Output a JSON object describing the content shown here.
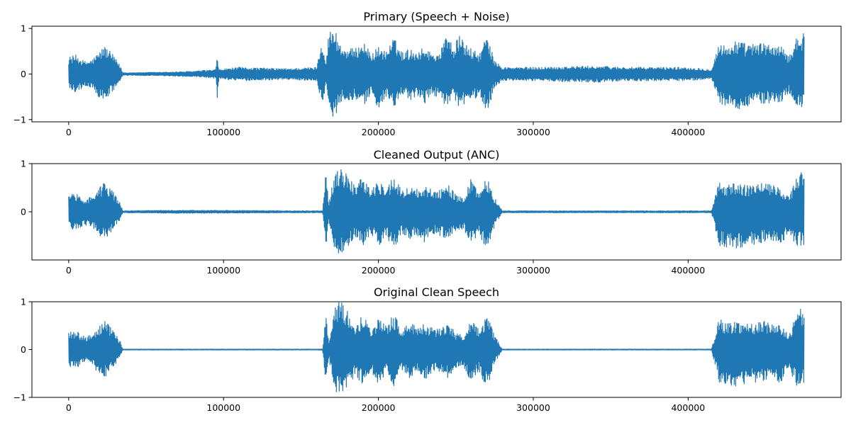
{
  "figure": {
    "charts": [
      {
        "type": "line",
        "title": "Primary (Speech + Noise)",
        "xlim": [
          -23750,
          498750
        ],
        "ylim": [
          -1.05,
          1.05
        ],
        "xticks": [
          0,
          100000,
          200000,
          300000,
          400000
        ],
        "xtick_labels": [
          "0",
          "100000",
          "200000",
          "300000",
          "400000"
        ],
        "yticks": [
          -1,
          0,
          1
        ],
        "ytick_labels": [
          "−1",
          "0",
          "1"
        ],
        "grid": false,
        "series_color": "#1f77b4",
        "envelope": {
          "x": [
            0,
            5000,
            10000,
            15000,
            20000,
            23000,
            28000,
            33000,
            35000,
            60000,
            80000,
            95000,
            96000,
            97000,
            110000,
            140000,
            160000,
            164000,
            166000,
            168000,
            172000,
            176000,
            185000,
            190000,
            195000,
            200000,
            205000,
            210000,
            215000,
            220000,
            225000,
            230000,
            235000,
            240000,
            245000,
            248000,
            252000,
            258000,
            265000,
            270000,
            275000,
            280000,
            300000,
            340000,
            360000,
            400000,
            415000,
            420000,
            425000,
            430000,
            440000,
            450000,
            460000,
            465000,
            470000,
            475000
          ],
          "upper": [
            0.38,
            0.42,
            0.28,
            0.32,
            0.5,
            0.63,
            0.45,
            0.2,
            0.03,
            0.04,
            0.06,
            0.1,
            0.4,
            0.1,
            0.15,
            0.12,
            0.15,
            0.85,
            0.2,
            0.95,
            1.0,
            0.6,
            0.55,
            0.75,
            0.45,
            0.6,
            0.5,
            0.8,
            0.5,
            0.55,
            0.5,
            0.6,
            0.45,
            0.5,
            1.0,
            0.55,
            0.85,
            0.6,
            0.45,
            0.85,
            0.3,
            0.15,
            0.15,
            0.18,
            0.15,
            0.15,
            0.1,
            0.7,
            0.6,
            0.75,
            0.65,
            0.7,
            0.6,
            0.4,
            0.85,
            0.9
          ],
          "lower": [
            -0.35,
            -0.4,
            -0.28,
            -0.3,
            -0.55,
            -0.6,
            -0.4,
            -0.18,
            -0.03,
            -0.04,
            -0.06,
            -0.1,
            -0.72,
            -0.1,
            -0.15,
            -0.12,
            -0.15,
            -0.7,
            -0.2,
            -0.9,
            -0.95,
            -0.6,
            -0.55,
            -0.75,
            -0.45,
            -0.75,
            -0.5,
            -0.8,
            -0.45,
            -0.6,
            -0.5,
            -0.65,
            -0.45,
            -0.55,
            -0.75,
            -0.55,
            -0.78,
            -0.6,
            -0.5,
            -0.88,
            -0.3,
            -0.15,
            -0.15,
            -0.18,
            -0.15,
            -0.15,
            -0.1,
            -0.65,
            -0.7,
            -0.8,
            -0.7,
            -0.65,
            -0.65,
            -0.4,
            -0.75,
            -0.72
          ]
        }
      },
      {
        "type": "line",
        "title": "Cleaned Output (ANC)",
        "xlim": [
          -23750,
          498750
        ],
        "ylim": [
          -1.0,
          1.0
        ],
        "xticks": [
          0,
          100000,
          200000,
          300000,
          400000
        ],
        "xtick_labels": [
          "0",
          "100000",
          "200000",
          "300000",
          "400000"
        ],
        "yticks": [
          0,
          1
        ],
        "ytick_labels": [
          "0",
          "1"
        ],
        "grid": false,
        "series_color": "#1f77b4",
        "envelope": {
          "x": [
            0,
            5000,
            10000,
            15000,
            20000,
            23000,
            28000,
            33000,
            35000,
            60000,
            100000,
            150000,
            164000,
            166000,
            168000,
            172000,
            176000,
            185000,
            190000,
            195000,
            200000,
            205000,
            210000,
            215000,
            220000,
            225000,
            230000,
            235000,
            240000,
            245000,
            250000,
            255000,
            260000,
            265000,
            270000,
            275000,
            280000,
            300000,
            340000,
            380000,
            415000,
            420000,
            425000,
            430000,
            440000,
            450000,
            460000,
            465000,
            470000,
            475000
          ],
          "upper": [
            0.38,
            0.4,
            0.28,
            0.32,
            0.5,
            0.62,
            0.45,
            0.2,
            0.02,
            0.03,
            0.03,
            0.02,
            0.02,
            0.9,
            0.2,
            0.9,
            0.95,
            0.55,
            0.75,
            0.45,
            0.65,
            0.5,
            0.75,
            0.45,
            0.55,
            0.5,
            0.55,
            0.45,
            0.45,
            0.6,
            0.35,
            0.3,
            0.7,
            0.4,
            0.75,
            0.3,
            0.02,
            0.02,
            0.02,
            0.02,
            0.02,
            0.65,
            0.55,
            0.6,
            0.55,
            0.6,
            0.5,
            0.3,
            0.75,
            0.9
          ],
          "lower": [
            -0.35,
            -0.4,
            -0.28,
            -0.3,
            -0.55,
            -0.6,
            -0.4,
            -0.18,
            -0.02,
            -0.03,
            -0.03,
            -0.02,
            -0.02,
            -0.8,
            -0.2,
            -0.85,
            -0.9,
            -0.55,
            -0.75,
            -0.45,
            -0.75,
            -0.5,
            -0.8,
            -0.45,
            -0.6,
            -0.5,
            -0.65,
            -0.45,
            -0.5,
            -0.6,
            -0.4,
            -0.35,
            -0.7,
            -0.45,
            -0.85,
            -0.3,
            -0.02,
            -0.02,
            -0.02,
            -0.02,
            -0.02,
            -0.7,
            -0.75,
            -0.8,
            -0.7,
            -0.65,
            -0.7,
            -0.4,
            -0.75,
            -0.72
          ]
        }
      },
      {
        "type": "line",
        "title": "Original Clean Speech",
        "xlim": [
          -23750,
          498750
        ],
        "ylim": [
          -1.0,
          1.0
        ],
        "xticks": [
          0,
          100000,
          200000,
          300000,
          400000
        ],
        "xtick_labels": [
          "0",
          "100000",
          "200000",
          "300000",
          "400000"
        ],
        "yticks": [
          -1,
          0,
          1
        ],
        "ytick_labels": [
          "−1",
          "0",
          "1"
        ],
        "grid": false,
        "series_color": "#1f77b4",
        "envelope": {
          "x": [
            0,
            5000,
            10000,
            15000,
            20000,
            23000,
            28000,
            33000,
            35000,
            60000,
            100000,
            150000,
            164000,
            166000,
            168000,
            172000,
            176000,
            185000,
            190000,
            195000,
            200000,
            205000,
            210000,
            215000,
            220000,
            225000,
            230000,
            235000,
            240000,
            245000,
            250000,
            255000,
            260000,
            265000,
            270000,
            275000,
            280000,
            300000,
            340000,
            380000,
            415000,
            420000,
            425000,
            430000,
            440000,
            450000,
            460000,
            465000,
            470000,
            475000
          ],
          "upper": [
            0.38,
            0.4,
            0.28,
            0.32,
            0.5,
            0.63,
            0.45,
            0.2,
            0.01,
            0.01,
            0.01,
            0.01,
            0.01,
            0.9,
            0.2,
            0.95,
            1.0,
            0.55,
            0.75,
            0.45,
            0.65,
            0.5,
            0.75,
            0.45,
            0.55,
            0.5,
            0.55,
            0.45,
            0.45,
            0.6,
            0.35,
            0.3,
            0.7,
            0.4,
            0.75,
            0.3,
            0.01,
            0.01,
            0.01,
            0.01,
            0.01,
            0.65,
            0.55,
            0.6,
            0.55,
            0.6,
            0.5,
            0.3,
            0.8,
            0.9
          ],
          "lower": [
            -0.35,
            -0.4,
            -0.28,
            -0.3,
            -0.55,
            -0.6,
            -0.4,
            -0.18,
            -0.01,
            -0.01,
            -0.01,
            -0.01,
            -0.01,
            -0.8,
            -0.2,
            -0.9,
            -0.92,
            -0.55,
            -0.75,
            -0.45,
            -0.75,
            -0.5,
            -0.8,
            -0.45,
            -0.6,
            -0.5,
            -0.65,
            -0.45,
            -0.5,
            -0.6,
            -0.4,
            -0.35,
            -0.7,
            -0.45,
            -0.85,
            -0.3,
            -0.01,
            -0.01,
            -0.01,
            -0.01,
            -0.01,
            -0.7,
            -0.75,
            -0.8,
            -0.7,
            -0.65,
            -0.7,
            -0.4,
            -0.75,
            -0.72
          ]
        }
      }
    ]
  }
}
